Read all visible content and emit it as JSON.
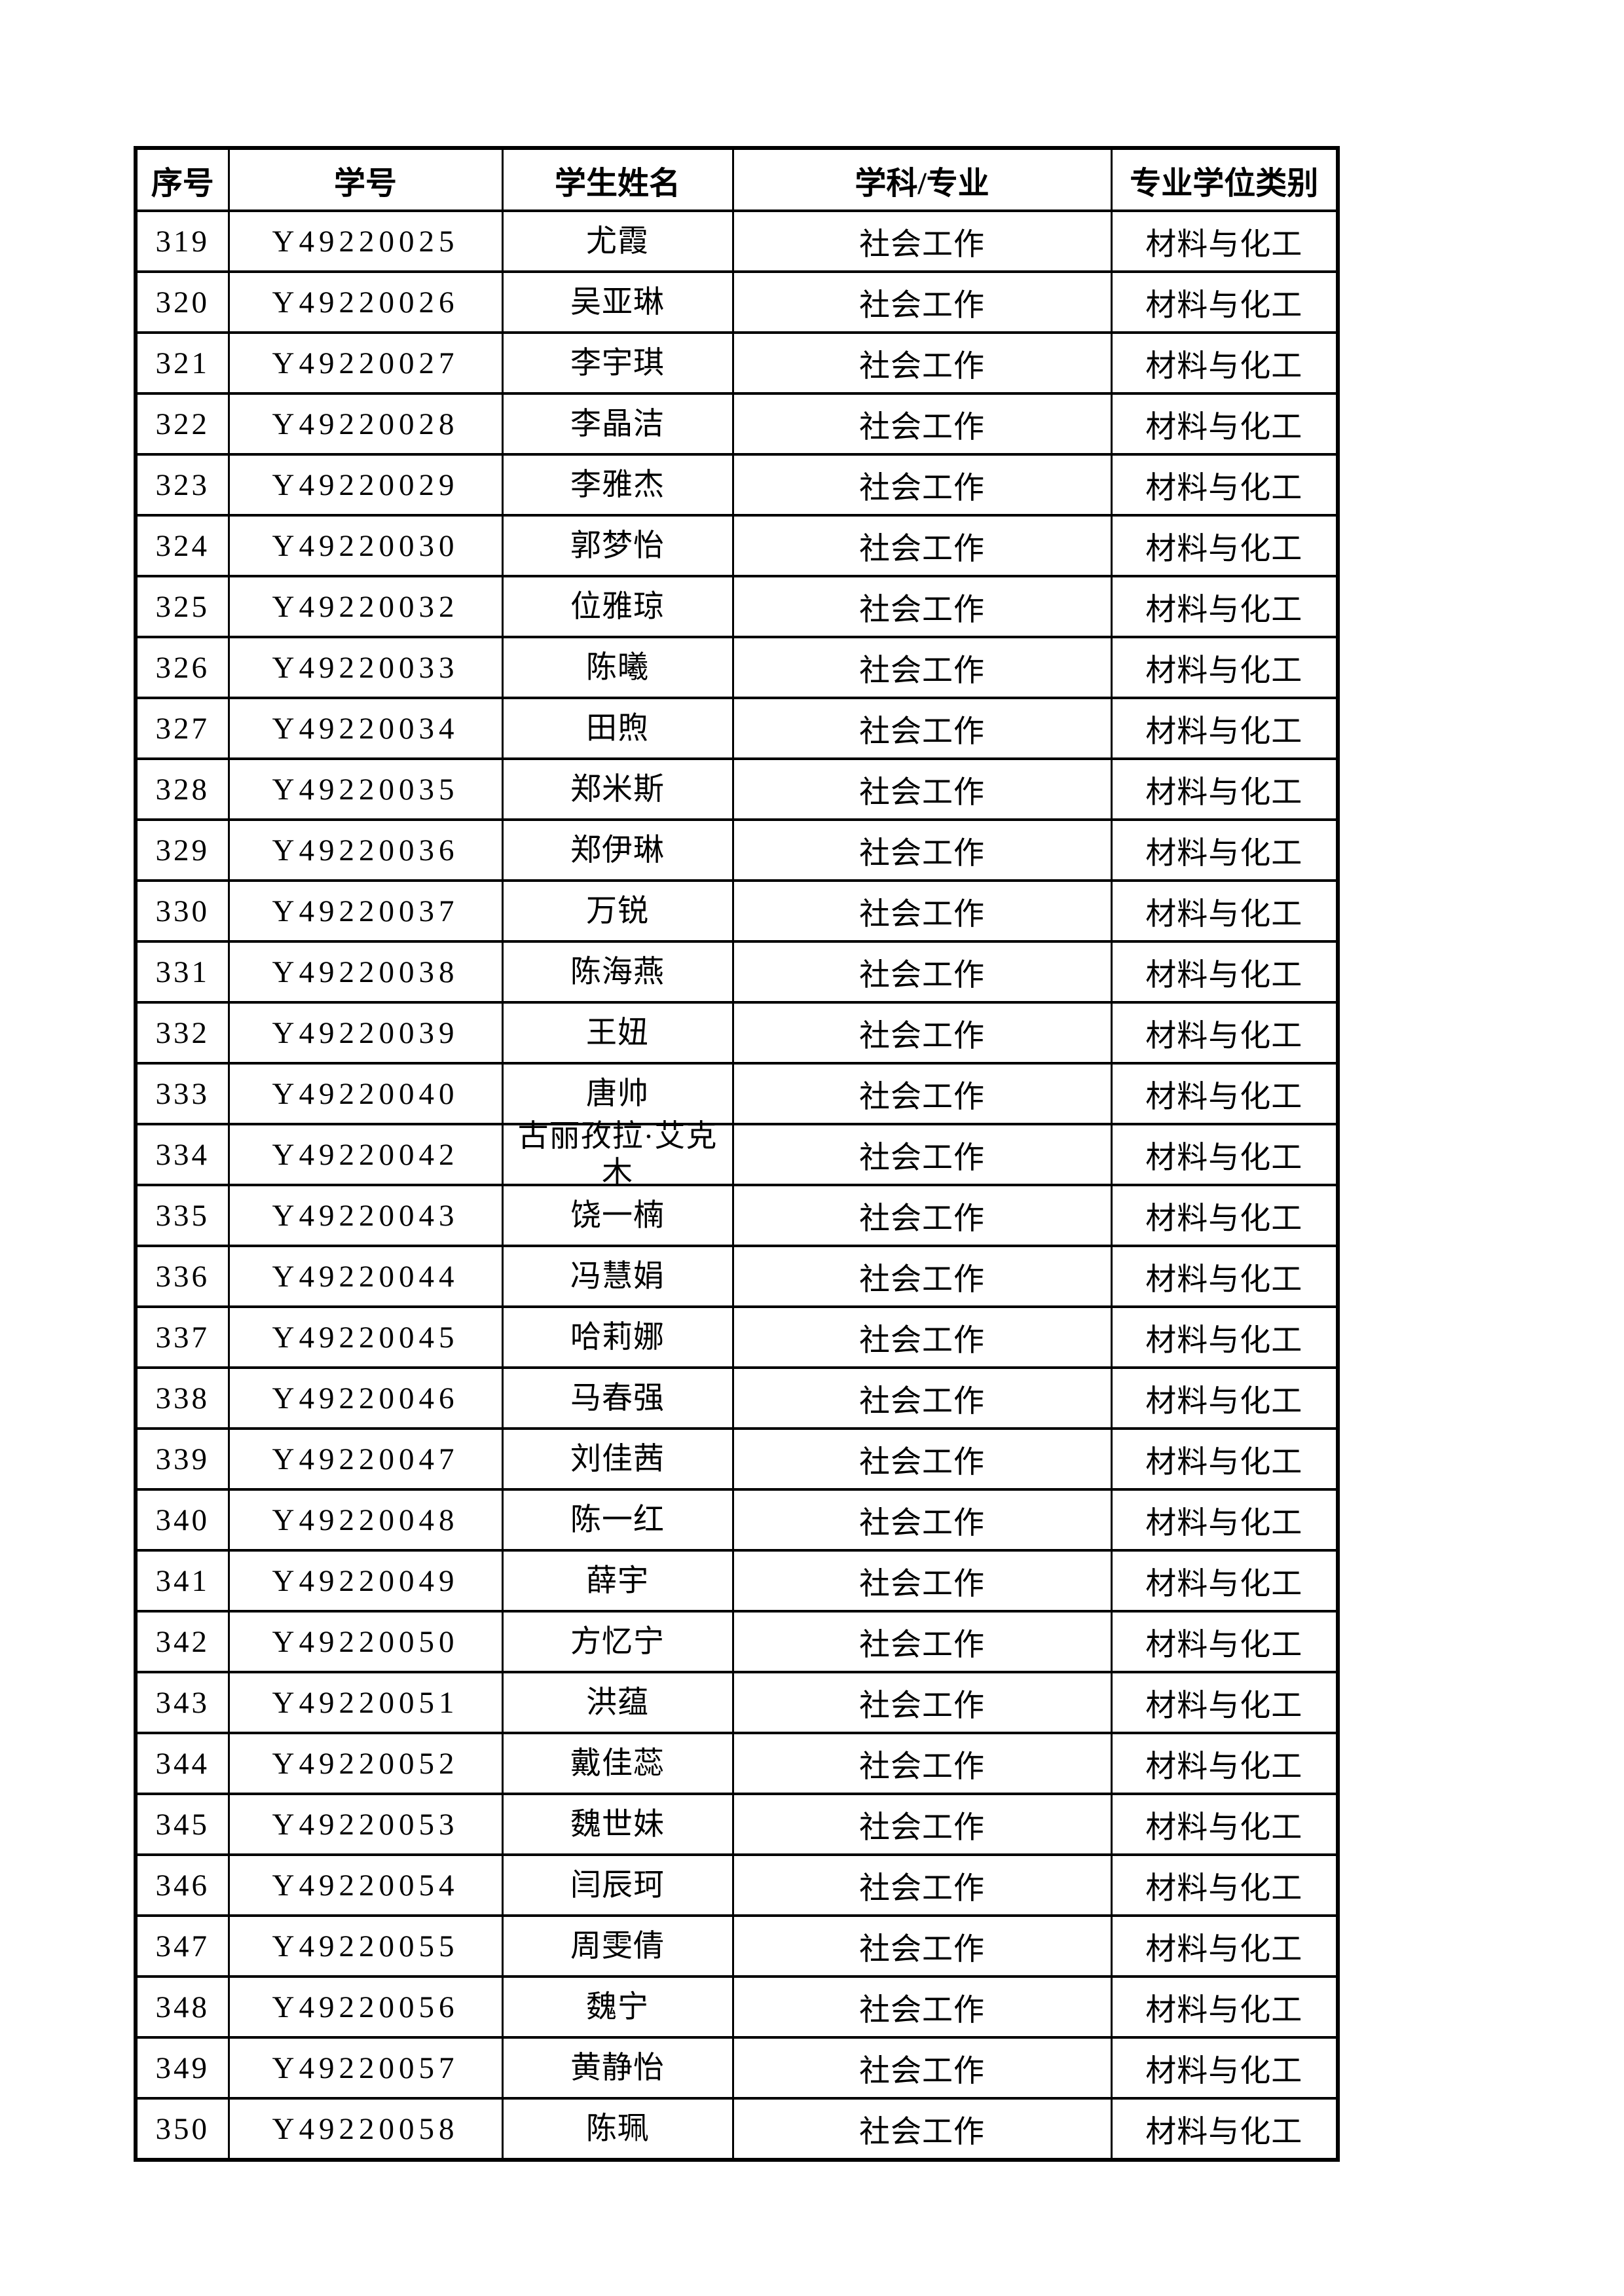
{
  "page": {
    "background_color": "#ffffff",
    "text_color": "#000000",
    "border_color": "#000000"
  },
  "table": {
    "headers": [
      "序号",
      "学号",
      "学生姓名",
      "学科/专业",
      "专业学位类别"
    ],
    "rows": [
      {
        "no": "319",
        "id": "Y49220025",
        "name": "尤霞",
        "major": "社会工作",
        "category": "材料与化工"
      },
      {
        "no": "320",
        "id": "Y49220026",
        "name": "吴亚琳",
        "major": "社会工作",
        "category": "材料与化工"
      },
      {
        "no": "321",
        "id": "Y49220027",
        "name": "李宇琪",
        "major": "社会工作",
        "category": "材料与化工"
      },
      {
        "no": "322",
        "id": "Y49220028",
        "name": "李晶洁",
        "major": "社会工作",
        "category": "材料与化工"
      },
      {
        "no": "323",
        "id": "Y49220029",
        "name": "李雅杰",
        "major": "社会工作",
        "category": "材料与化工"
      },
      {
        "no": "324",
        "id": "Y49220030",
        "name": "郭梦怡",
        "major": "社会工作",
        "category": "材料与化工"
      },
      {
        "no": "325",
        "id": "Y49220032",
        "name": "位雅琼",
        "major": "社会工作",
        "category": "材料与化工"
      },
      {
        "no": "326",
        "id": "Y49220033",
        "name": "陈曦",
        "major": "社会工作",
        "category": "材料与化工"
      },
      {
        "no": "327",
        "id": "Y49220034",
        "name": "田煦",
        "major": "社会工作",
        "category": "材料与化工"
      },
      {
        "no": "328",
        "id": "Y49220035",
        "name": "郑米斯",
        "major": "社会工作",
        "category": "材料与化工"
      },
      {
        "no": "329",
        "id": "Y49220036",
        "name": "郑伊琳",
        "major": "社会工作",
        "category": "材料与化工"
      },
      {
        "no": "330",
        "id": "Y49220037",
        "name": "万锐",
        "major": "社会工作",
        "category": "材料与化工"
      },
      {
        "no": "331",
        "id": "Y49220038",
        "name": "陈海燕",
        "major": "社会工作",
        "category": "材料与化工"
      },
      {
        "no": "332",
        "id": "Y49220039",
        "name": "王妞",
        "major": "社会工作",
        "category": "材料与化工"
      },
      {
        "no": "333",
        "id": "Y49220040",
        "name": "唐帅",
        "major": "社会工作",
        "category": "材料与化工"
      },
      {
        "no": "334",
        "id": "Y49220042",
        "name": "古丽孜拉·艾克木",
        "major": "社会工作",
        "category": "材料与化工"
      },
      {
        "no": "335",
        "id": "Y49220043",
        "name": "饶一楠",
        "major": "社会工作",
        "category": "材料与化工"
      },
      {
        "no": "336",
        "id": "Y49220044",
        "name": "冯慧娟",
        "major": "社会工作",
        "category": "材料与化工"
      },
      {
        "no": "337",
        "id": "Y49220045",
        "name": "哈莉娜",
        "major": "社会工作",
        "category": "材料与化工"
      },
      {
        "no": "338",
        "id": "Y49220046",
        "name": "马春强",
        "major": "社会工作",
        "category": "材料与化工"
      },
      {
        "no": "339",
        "id": "Y49220047",
        "name": "刘佳茜",
        "major": "社会工作",
        "category": "材料与化工"
      },
      {
        "no": "340",
        "id": "Y49220048",
        "name": "陈一红",
        "major": "社会工作",
        "category": "材料与化工"
      },
      {
        "no": "341",
        "id": "Y49220049",
        "name": "薛宇",
        "major": "社会工作",
        "category": "材料与化工"
      },
      {
        "no": "342",
        "id": "Y49220050",
        "name": "方忆宁",
        "major": "社会工作",
        "category": "材料与化工"
      },
      {
        "no": "343",
        "id": "Y49220051",
        "name": "洪蕴",
        "major": "社会工作",
        "category": "材料与化工"
      },
      {
        "no": "344",
        "id": "Y49220052",
        "name": "戴佳蕊",
        "major": "社会工作",
        "category": "材料与化工"
      },
      {
        "no": "345",
        "id": "Y49220053",
        "name": "魏世妹",
        "major": "社会工作",
        "category": "材料与化工"
      },
      {
        "no": "346",
        "id": "Y49220054",
        "name": "闫辰珂",
        "major": "社会工作",
        "category": "材料与化工"
      },
      {
        "no": "347",
        "id": "Y49220055",
        "name": "周雯倩",
        "major": "社会工作",
        "category": "材料与化工"
      },
      {
        "no": "348",
        "id": "Y49220056",
        "name": "魏宁",
        "major": "社会工作",
        "category": "材料与化工"
      },
      {
        "no": "349",
        "id": "Y49220057",
        "name": "黄静怡",
        "major": "社会工作",
        "category": "材料与化工"
      },
      {
        "no": "350",
        "id": "Y49220058",
        "name": "陈珮",
        "major": "社会工作",
        "category": "材料与化工"
      }
    ]
  }
}
